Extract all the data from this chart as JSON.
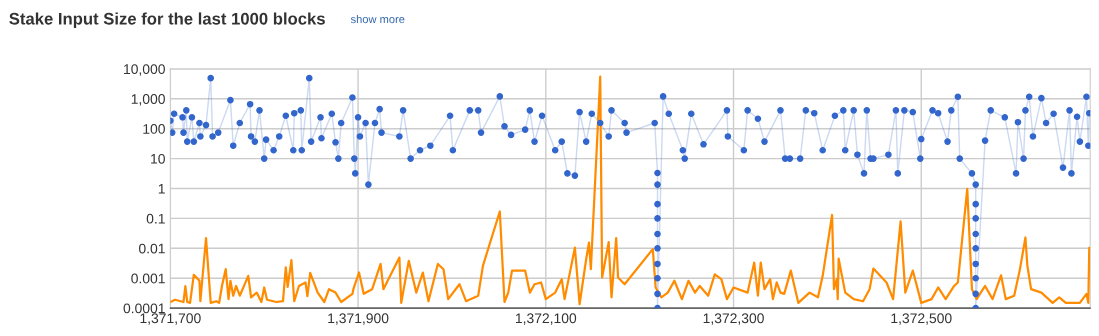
{
  "chart_data": {
    "type": "line",
    "title": "Stake Input Size for the last 1000 blocks",
    "annotations": [
      "show more"
    ],
    "log": "y",
    "grid": true,
    "line_style": "solid",
    "xlim": [
      1371700,
      1372680
    ],
    "xticks": [
      {
        "value": 1371700,
        "label": "1,371,700"
      },
      {
        "value": 1371900,
        "label": "1,371,900"
      },
      {
        "value": 1372100,
        "label": "1,372,100"
      },
      {
        "value": 1372300,
        "label": "1,372,300"
      },
      {
        "value": 1372500,
        "label": "1,372,500"
      }
    ],
    "ylim": [
      0.0001,
      10000
    ],
    "yticks": [
      0.0001,
      0.001,
      0.01,
      0.1,
      1,
      10,
      100,
      {
        "value": 1000,
        "label": "1,000"
      },
      {
        "value": 10000,
        "label": "10,000"
      }
    ],
    "series": [
      {
        "color": "#3366cc",
        "marker": "circle",
        "x": [
          1371700,
          1371702,
          1371704,
          1371713,
          1371714,
          1371717,
          1371718,
          1371723,
          1371725,
          1371731,
          1371732,
          1371738,
          1371743,
          1371745,
          1371751,
          1371764,
          1371767,
          1371774,
          1371785,
          1371786,
          1371790,
          1371795,
          1371800,
          1371802,
          1371810,
          1371816,
          1371823,
          1371831,
          1371832,
          1371839,
          1371840,
          1371848,
          1371850,
          1371860,
          1371861,
          1371872,
          1371876,
          1371879,
          1371882,
          1371894,
          1371896,
          1371897,
          1371900,
          1371902,
          1371908,
          1371911,
          1371918,
          1371923,
          1371925,
          1371944,
          1371948,
          1371956,
          1371966,
          1371977,
          1371998,
          1372001,
          1372019,
          1372028,
          1372031,
          1372051,
          1372056,
          1372063,
          1372078,
          1372083,
          1372088,
          1372096,
          1372110,
          1372117,
          1372123,
          1372131,
          1372136,
          1372143,
          1372149,
          1372158,
          1372167,
          1372170,
          1372184,
          1372186,
          1372216,
          1372219,
          1372219,
          1372219,
          1372219,
          1372219,
          1372219,
          1372219,
          1372219,
          1372219,
          1372219,
          1372225,
          1372231,
          1372246,
          1372248,
          1372255,
          1372268,
          1372293,
          1372294,
          1372311,
          1372315,
          1372326,
          1372333,
          1372350,
          1372355,
          1372360,
          1372371,
          1372377,
          1372386,
          1372395,
          1372408,
          1372417,
          1372419,
          1372428,
          1372432,
          1372439,
          1372442,
          1372446,
          1372449,
          1372465,
          1372473,
          1372475,
          1372482,
          1372491,
          1372499,
          1372500,
          1372512,
          1372518,
          1372528,
          1372532,
          1372539,
          1372541,
          1372554,
          1372558,
          1372558,
          1372558,
          1372558,
          1372558,
          1372558,
          1372558,
          1372558,
          1372558,
          1372568,
          1372574,
          1372589,
          1372601,
          1372603,
          1372609,
          1372611,
          1372615,
          1372619,
          1372628,
          1372633,
          1372641,
          1372651,
          1372658,
          1372660,
          1372666,
          1372669,
          1372676,
          1372678,
          1372679
        ],
        "values": [
          185,
          74,
          316,
          240,
          74,
          410,
          37,
          240,
          37,
          155,
          55,
          132,
          4900,
          55,
          74,
          900,
          27,
          155,
          660,
          55,
          37,
          410,
          10,
          43,
          19,
          55,
          270,
          19,
          330,
          410,
          19,
          4900,
          37,
          240,
          48,
          316,
          35,
          10,
          155,
          1100,
          10,
          3.2,
          240,
          55,
          155,
          1.35,
          155,
          450,
          74,
          55,
          410,
          10,
          19,
          27,
          270,
          19,
          410,
          410,
          74,
          1200,
          120,
          62,
          93,
          410,
          37,
          270,
          19,
          37,
          3.2,
          2.7,
          360,
          37,
          316,
          155,
          55,
          410,
          155,
          74,
          155,
          3.3,
          1.35,
          0.3,
          0.1,
          0.03,
          0.01,
          0.003,
          0.001,
          0.0003,
          0.0001,
          1200,
          316,
          19,
          10,
          316,
          30,
          410,
          55,
          19,
          410,
          215,
          37,
          410,
          10,
          10,
          10,
          410,
          330,
          19,
          270,
          410,
          19,
          410,
          13.5,
          3.2,
          410,
          10,
          10,
          13.5,
          410,
          3.2,
          410,
          360,
          10,
          45,
          410,
          330,
          37,
          410,
          1170,
          10,
          3.2,
          1.35,
          0.3,
          0.1,
          0.03,
          0.01,
          0.003,
          0.001,
          0.0003,
          0.0001,
          40,
          410,
          240,
          3.2,
          165,
          10,
          410,
          1170,
          55,
          1050,
          155,
          316,
          5,
          410,
          3.2,
          250,
          37,
          1170,
          27,
          330
        ]
      },
      {
        "color": "#ff8c00",
        "marker": "none",
        "x": [
          1371700,
          1371705,
          1371714,
          1371716,
          1371718,
          1371721,
          1371725,
          1371731,
          1371732,
          1371738,
          1371743,
          1371749,
          1371752,
          1371755,
          1371759,
          1371762,
          1371764,
          1371767,
          1371770,
          1371774,
          1371783,
          1371786,
          1371792,
          1371797,
          1371800,
          1371803,
          1371813,
          1371820,
          1371823,
          1371825,
          1371829,
          1371832,
          1371837,
          1371844,
          1371846,
          1371849,
          1371857,
          1371864,
          1371869,
          1371876,
          1371882,
          1371894,
          1371895,
          1371901,
          1371906,
          1371915,
          1371924,
          1371927,
          1371944,
          1371946,
          1371954,
          1371962,
          1371969,
          1371975,
          1371985,
          1371991,
          1371996,
          1372008,
          1372015,
          1372028,
          1372033,
          1372051,
          1372056,
          1372060,
          1372064,
          1372078,
          1372083,
          1372088,
          1372095,
          1372100,
          1372110,
          1372117,
          1372120,
          1372131,
          1372136,
          1372143,
          1372146,
          1372148,
          1372158,
          1372160,
          1372167,
          1372170,
          1372175,
          1372177,
          1372184,
          1372214,
          1372217,
          1372223,
          1372230,
          1372237,
          1372245,
          1372252,
          1372259,
          1372264,
          1372273,
          1372280,
          1372287,
          1372293,
          1372300,
          1372315,
          1372322,
          1372326,
          1372329,
          1372333,
          1372339,
          1372342,
          1372346,
          1372350,
          1372354,
          1372361,
          1372369,
          1372381,
          1372390,
          1372395,
          1372405,
          1372407,
          1372410,
          1372411,
          1372412,
          1372419,
          1372428,
          1372438,
          1372445,
          1372449,
          1372463,
          1372470,
          1372478,
          1372483,
          1372491,
          1372500,
          1372511,
          1372518,
          1372526,
          1372535,
          1372539,
          1372549,
          1372554,
          1372559,
          1372568,
          1372576,
          1372585,
          1372590,
          1372599,
          1372605,
          1372611,
          1372613,
          1372617,
          1372628,
          1372640,
          1372647,
          1372654,
          1372669,
          1372676,
          1372678,
          1372679
        ],
        "values": [
          0.00016,
          0.00019,
          0.00016,
          0.00054,
          0.00016,
          0.00015,
          0.0013,
          0.00082,
          0.00017,
          0.022,
          0.00015,
          0.00017,
          0.00015,
          0.00055,
          0.002,
          0.0002,
          0.00082,
          0.00026,
          0.00055,
          0.00026,
          0.0012,
          0.00023,
          0.00033,
          0.00016,
          0.00049,
          0.00019,
          0.00016,
          0.00017,
          0.0023,
          0.00051,
          0.004,
          0.00017,
          0.00055,
          0.00072,
          0.00025,
          0.0015,
          0.00033,
          0.00016,
          0.00043,
          0.00033,
          0.00016,
          0.0003,
          0.00043,
          0.00155,
          0.0003,
          0.00043,
          0.003,
          0.00043,
          0.0049,
          0.00015,
          0.0038,
          0.00033,
          0.00155,
          0.00017,
          0.003,
          0.002,
          0.0002,
          0.00063,
          0.00017,
          0.00026,
          0.0026,
          0.17,
          0.00016,
          0.00033,
          0.0018,
          0.0018,
          0.00033,
          0.00063,
          0.00072,
          0.0002,
          0.00033,
          0.00093,
          0.0002,
          0.0105,
          0.000135,
          0.0043,
          0.0154,
          0.002,
          5500,
          0.00105,
          0.016,
          0.00023,
          0.022,
          0.00105,
          0.00063,
          0.0094,
          0.00049,
          0.00023,
          0.00033,
          0.00082,
          0.0002,
          0.00082,
          0.00033,
          0.00055,
          0.00026,
          0.00135,
          0.00093,
          0.0002,
          0.00049,
          0.00033,
          0.0033,
          0.00026,
          0.0033,
          0.00043,
          0.00093,
          0.0002,
          0.00072,
          0.00033,
          0.0003,
          0.0018,
          0.00015,
          0.00033,
          0.00023,
          0.0012,
          0.13,
          0.00043,
          0.00093,
          0.0002,
          0.0045,
          0.00033,
          0.0002,
          0.00017,
          0.00043,
          0.0021,
          0.00072,
          0.0002,
          0.079,
          0.00033,
          0.0018,
          0.00015,
          0.0002,
          0.00049,
          0.0002,
          0.00055,
          0.00072,
          0.97,
          0.00043,
          0.0002,
          0.00055,
          0.0002,
          0.00125,
          0.0002,
          0.00026,
          0.0019,
          0.023,
          0.0027,
          0.00043,
          0.00033,
          0.00015,
          0.00023,
          0.00015,
          0.00015,
          0.0003,
          0.00015,
          0.0103
        ]
      }
    ]
  }
}
